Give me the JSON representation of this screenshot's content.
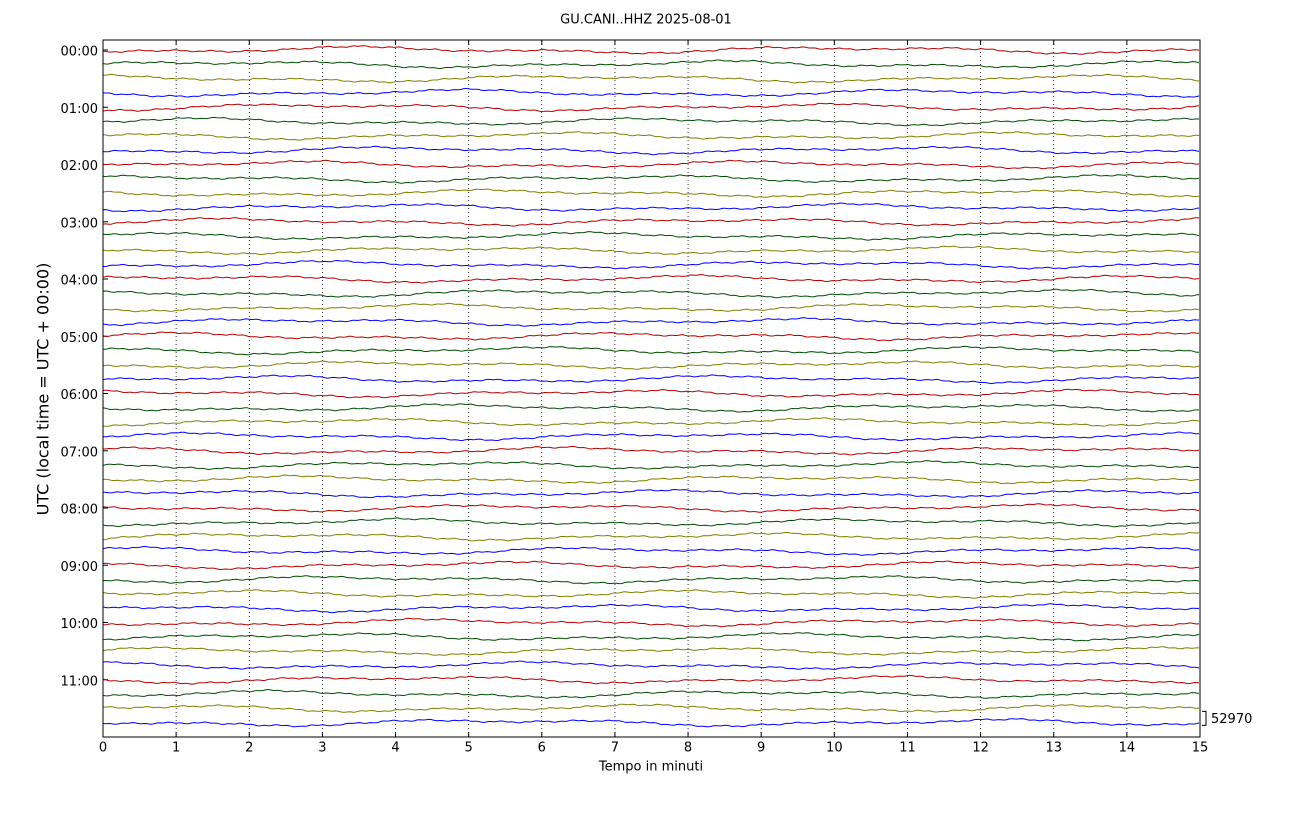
{
  "chart_data": {
    "type": "helicorder",
    "title": "GU.CANI..HHZ 2025-08-01",
    "xlabel": "Tempo in minuti",
    "ylabel": "UTC (local time = UTC + 00:00)",
    "xlim": [
      0,
      15
    ],
    "xticks": [
      0,
      1,
      2,
      3,
      4,
      5,
      6,
      7,
      8,
      9,
      10,
      11,
      12,
      13,
      14,
      15
    ],
    "ylim": [
      -0.7,
      48
    ],
    "y_inverted": true,
    "yticks": [
      {
        "value": 0,
        "label": "00:00"
      },
      {
        "value": 4,
        "label": "01:00"
      },
      {
        "value": 8,
        "label": "02:00"
      },
      {
        "value": 12,
        "label": "03:00"
      },
      {
        "value": 16,
        "label": "04:00"
      },
      {
        "value": 20,
        "label": "05:00"
      },
      {
        "value": 24,
        "label": "06:00"
      },
      {
        "value": 28,
        "label": "07:00"
      },
      {
        "value": 32,
        "label": "08:00"
      },
      {
        "value": 36,
        "label": "09:00"
      },
      {
        "value": 40,
        "label": "10:00"
      },
      {
        "value": 44,
        "label": "11:00"
      }
    ],
    "rows": 48,
    "trace_colors": [
      "#b30000",
      "#004d00",
      "#808000",
      "#0000ff"
    ],
    "grid": true,
    "scale": 52970
  }
}
